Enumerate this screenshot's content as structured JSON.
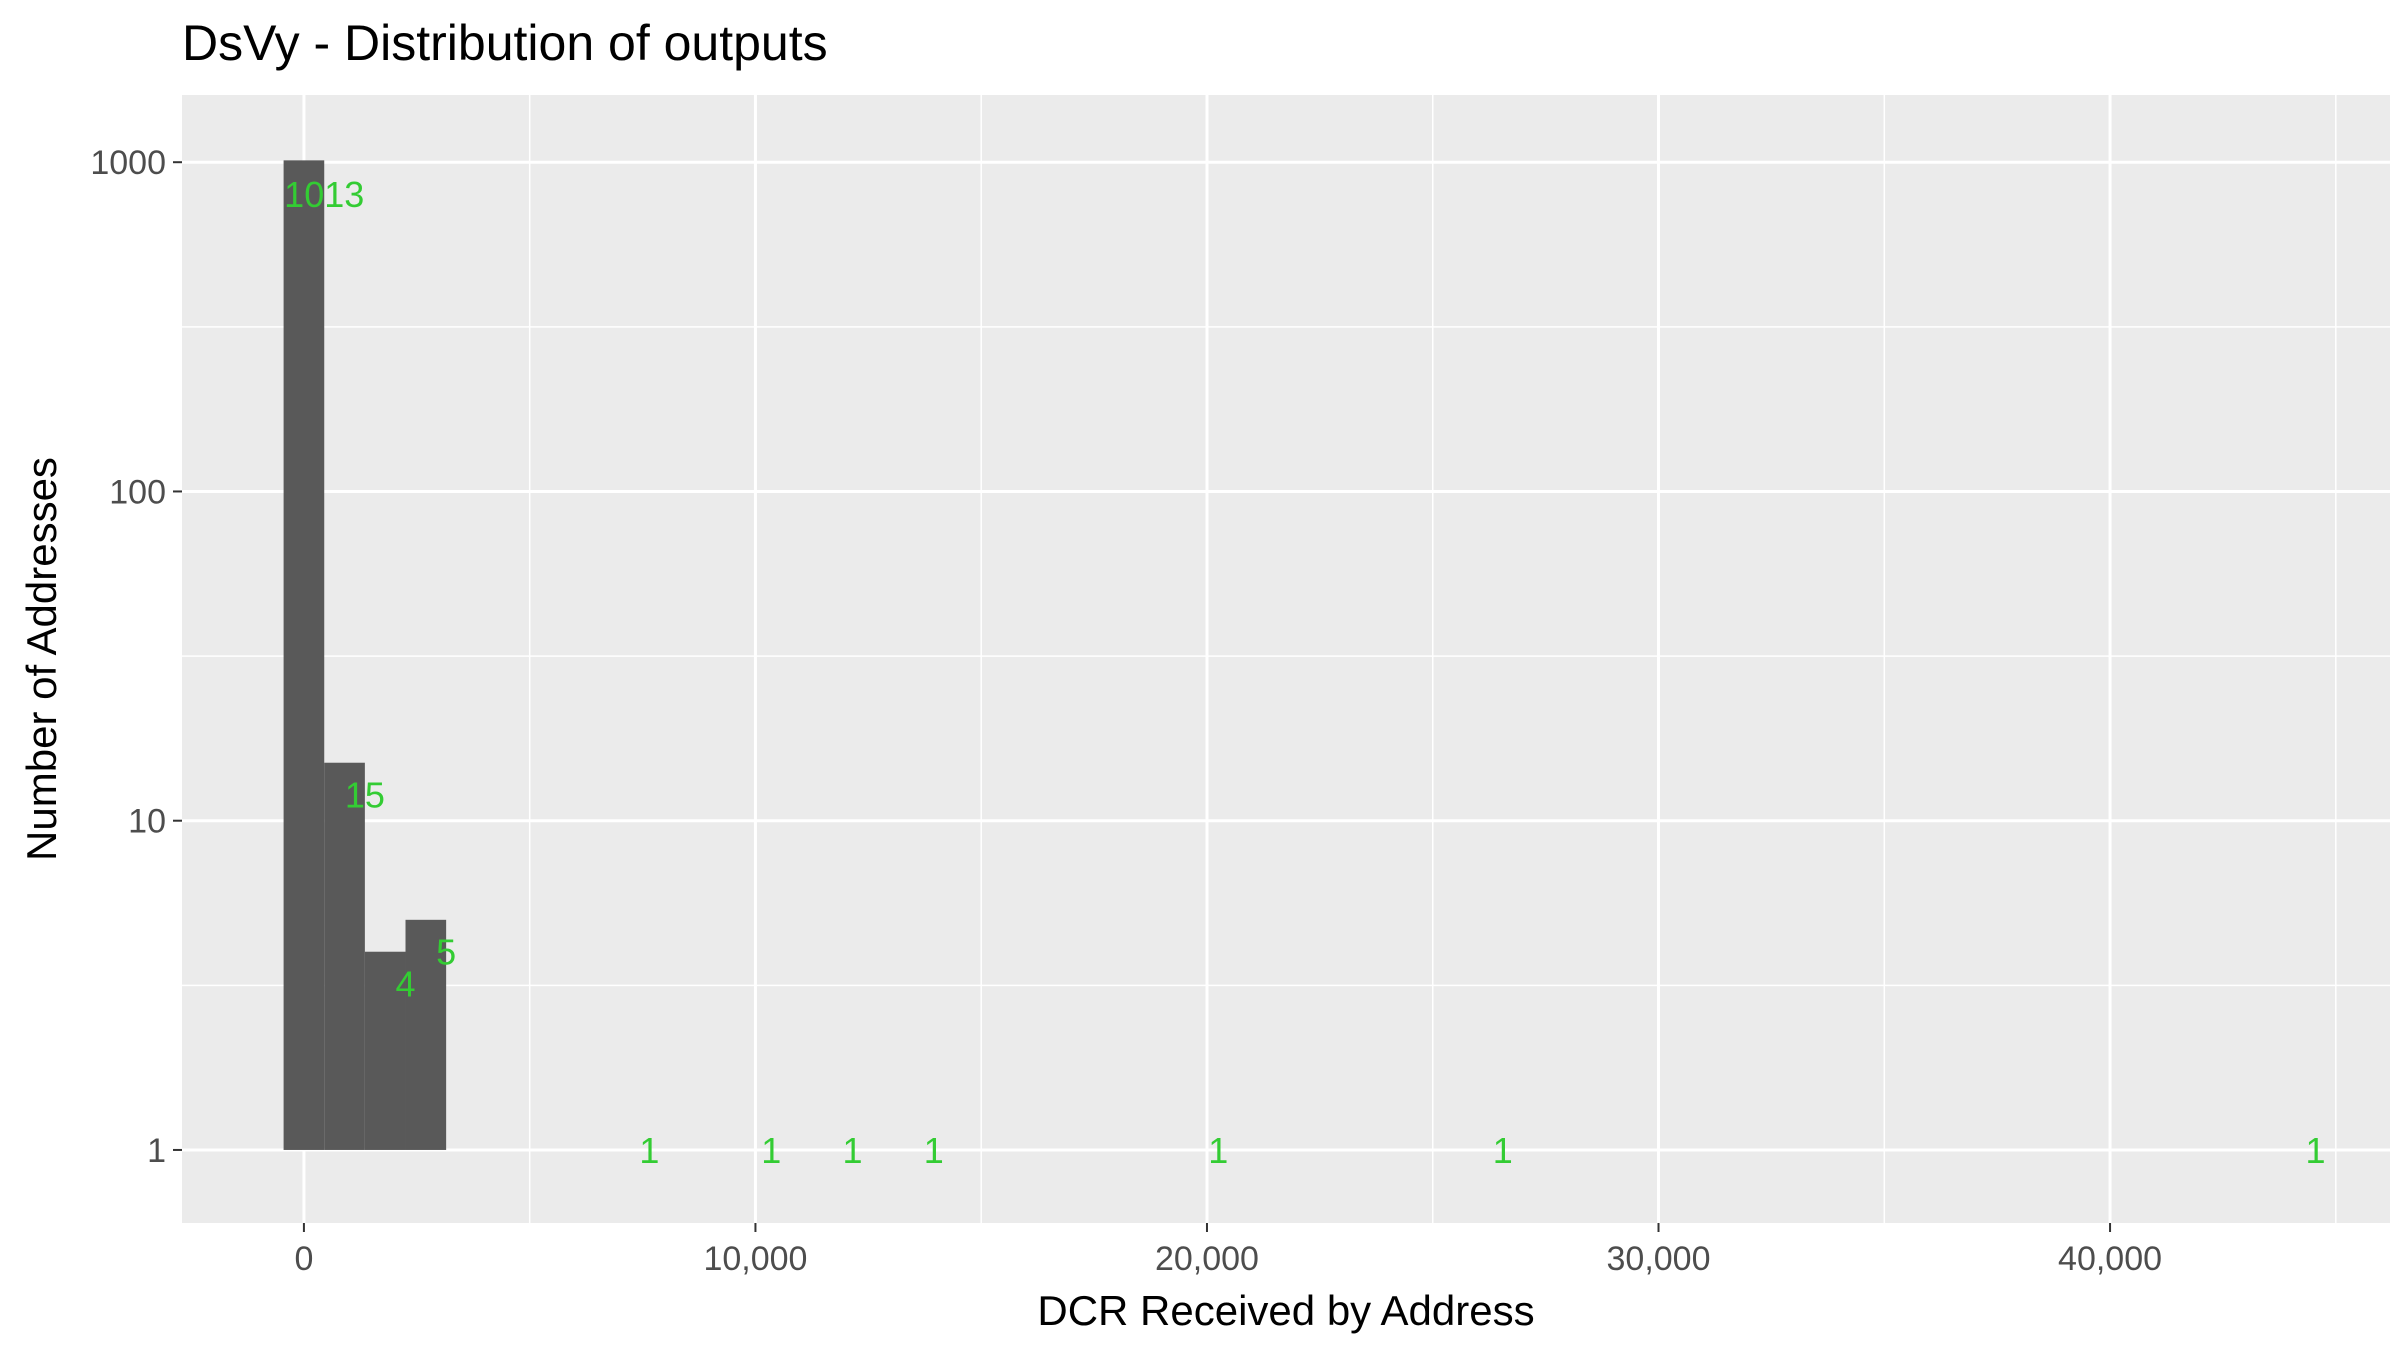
{
  "chart_data": {
    "type": "bar",
    "title": "DsVy - Distribution of outputs",
    "xlabel": "DCR Received by Address",
    "ylabel": "Number of Addresses",
    "x_scale": "linear",
    "y_scale": "log10",
    "xlim": [
      -2700,
      46200
    ],
    "ylim": [
      0.6,
      1600
    ],
    "x_ticks": [
      0,
      10000,
      20000,
      30000,
      40000
    ],
    "x_tick_labels": [
      "0",
      "10,000",
      "20,000",
      "30,000",
      "40,000"
    ],
    "y_ticks": [
      1,
      10,
      100,
      1000
    ],
    "y_tick_labels": [
      "1",
      "10",
      "100",
      "1000"
    ],
    "grid": true,
    "legend": "none",
    "bar_color": "#595959",
    "label_color": "#33cc33",
    "panel_color": "#ebebeb",
    "bin_width": 900,
    "bins": [
      {
        "center": 0,
        "count": 1013,
        "label": "1013",
        "label_y": 800
      },
      {
        "center": 900,
        "count": 15,
        "label": "15",
        "label_y": 12
      },
      {
        "center": 1800,
        "count": 4,
        "label": "4",
        "label_y": 3.2
      },
      {
        "center": 2700,
        "count": 5,
        "label": "5",
        "label_y": 4
      },
      {
        "center": 7200,
        "count": 1,
        "label": "1",
        "label_y": 1
      },
      {
        "center": 9900,
        "count": 1,
        "label": "1",
        "label_y": 1
      },
      {
        "center": 11700,
        "count": 1,
        "label": "1",
        "label_y": 1
      },
      {
        "center": 13500,
        "count": 1,
        "label": "1",
        "label_y": 1
      },
      {
        "center": 19800,
        "count": 1,
        "label": "1",
        "label_y": 1
      },
      {
        "center": 26100,
        "count": 1,
        "label": "1",
        "label_y": 1
      },
      {
        "center": 44100,
        "count": 1,
        "label": "1",
        "label_y": 1
      }
    ]
  }
}
